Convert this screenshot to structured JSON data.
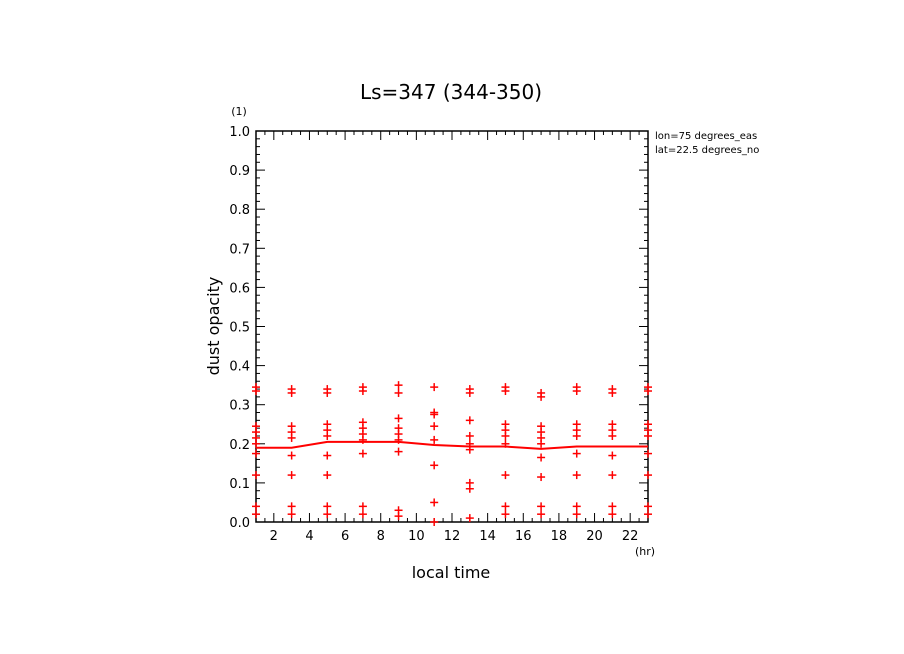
{
  "chart_data": {
    "type": "scatter",
    "title": "Ls=347 (344-350)",
    "xlabel": "local time",
    "ylabel": "dust opacity",
    "x_unit": "(hr)",
    "y_unit": "(1)",
    "xlim": [
      1,
      23
    ],
    "ylim": [
      0.0,
      1.0
    ],
    "x_ticks": [
      "2",
      "4",
      "6",
      "8",
      "10",
      "12",
      "14",
      "16",
      "18",
      "20",
      "22"
    ],
    "y_ticks": [
      "0.0",
      "0.1",
      "0.2",
      "0.3",
      "0.4",
      "0.5",
      "0.6",
      "0.7",
      "0.8",
      "0.9",
      "1.0"
    ],
    "annotations": [
      "lon=75 degrees_eas",
      "lat=22.5 degrees_no"
    ],
    "series": [
      {
        "kind": "points",
        "color": "#ff0000",
        "points": [
          [
            1,
            0.345
          ],
          [
            1,
            0.335
          ],
          [
            1,
            0.245
          ],
          [
            1,
            0.23
          ],
          [
            1,
            0.215
          ],
          [
            1,
            0.2
          ],
          [
            1,
            0.175
          ],
          [
            1,
            0.12
          ],
          [
            1,
            0.04
          ],
          [
            1,
            0.02
          ],
          [
            3,
            0.34
          ],
          [
            3,
            0.33
          ],
          [
            3,
            0.245
          ],
          [
            3,
            0.23
          ],
          [
            3,
            0.215
          ],
          [
            3,
            0.17
          ],
          [
            3,
            0.12
          ],
          [
            3,
            0.04
          ],
          [
            3,
            0.02
          ],
          [
            5,
            0.34
          ],
          [
            5,
            0.33
          ],
          [
            5,
            0.25
          ],
          [
            5,
            0.235
          ],
          [
            5,
            0.22
          ],
          [
            5,
            0.17
          ],
          [
            5,
            0.12
          ],
          [
            5,
            0.04
          ],
          [
            5,
            0.02
          ],
          [
            7,
            0.345
          ],
          [
            7,
            0.335
          ],
          [
            7,
            0.255
          ],
          [
            7,
            0.24
          ],
          [
            7,
            0.225
          ],
          [
            7,
            0.21
          ],
          [
            7,
            0.175
          ],
          [
            7,
            0.04
          ],
          [
            7,
            0.02
          ],
          [
            9,
            0.35
          ],
          [
            9,
            0.33
          ],
          [
            9,
            0.265
          ],
          [
            9,
            0.24
          ],
          [
            9,
            0.225
          ],
          [
            9,
            0.21
          ],
          [
            9,
            0.18
          ],
          [
            9,
            0.03
          ],
          [
            9,
            0.015
          ],
          [
            11,
            0.345
          ],
          [
            11,
            0.28
          ],
          [
            11,
            0.275
          ],
          [
            11,
            0.245
          ],
          [
            11,
            0.21
          ],
          [
            11,
            0.145
          ],
          [
            11,
            0.05
          ],
          [
            11,
            0.0
          ],
          [
            13,
            0.34
          ],
          [
            13,
            0.33
          ],
          [
            13,
            0.26
          ],
          [
            13,
            0.22
          ],
          [
            13,
            0.2
          ],
          [
            13,
            0.185
          ],
          [
            13,
            0.1
          ],
          [
            13,
            0.085
          ],
          [
            13,
            0.01
          ],
          [
            15,
            0.345
          ],
          [
            15,
            0.335
          ],
          [
            15,
            0.25
          ],
          [
            15,
            0.235
          ],
          [
            15,
            0.22
          ],
          [
            15,
            0.2
          ],
          [
            15,
            0.12
          ],
          [
            15,
            0.04
          ],
          [
            15,
            0.02
          ],
          [
            17,
            0.33
          ],
          [
            17,
            0.32
          ],
          [
            17,
            0.245
          ],
          [
            17,
            0.23
          ],
          [
            17,
            0.215
          ],
          [
            17,
            0.2
          ],
          [
            17,
            0.165
          ],
          [
            17,
            0.115
          ],
          [
            17,
            0.04
          ],
          [
            17,
            0.02
          ],
          [
            19,
            0.345
          ],
          [
            19,
            0.335
          ],
          [
            19,
            0.25
          ],
          [
            19,
            0.235
          ],
          [
            19,
            0.22
          ],
          [
            19,
            0.175
          ],
          [
            19,
            0.12
          ],
          [
            19,
            0.04
          ],
          [
            19,
            0.02
          ],
          [
            21,
            0.34
          ],
          [
            21,
            0.33
          ],
          [
            21,
            0.25
          ],
          [
            21,
            0.235
          ],
          [
            21,
            0.22
          ],
          [
            21,
            0.17
          ],
          [
            21,
            0.12
          ],
          [
            21,
            0.04
          ],
          [
            21,
            0.02
          ],
          [
            23,
            0.345
          ],
          [
            23,
            0.335
          ],
          [
            23,
            0.25
          ],
          [
            23,
            0.235
          ],
          [
            23,
            0.22
          ],
          [
            23,
            0.175
          ],
          [
            23,
            0.12
          ],
          [
            23,
            0.04
          ],
          [
            23,
            0.02
          ]
        ]
      },
      {
        "kind": "line",
        "color": "#ff0000",
        "x": [
          1,
          3,
          5,
          7,
          9,
          11,
          13,
          15,
          17,
          19,
          21,
          23
        ],
        "values": [
          0.19,
          0.19,
          0.205,
          0.205,
          0.205,
          0.197,
          0.193,
          0.193,
          0.187,
          0.193,
          0.193,
          0.193
        ]
      }
    ]
  }
}
